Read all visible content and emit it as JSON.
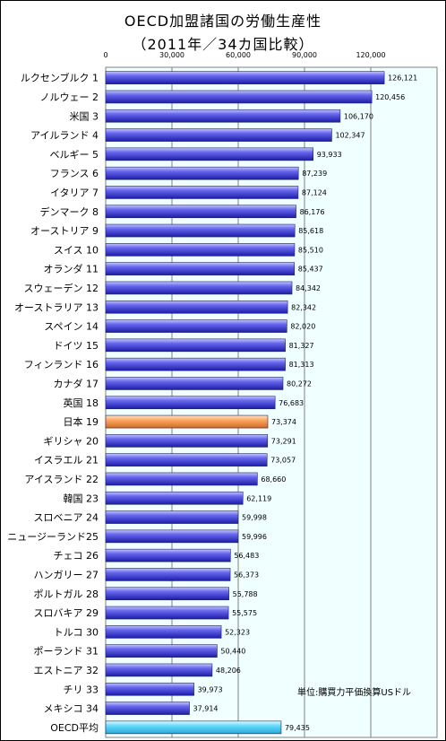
{
  "chart_data": {
    "type": "bar",
    "orientation": "horizontal",
    "title": "OECD加盟諸国の労働生産性",
    "subtitle": "（2011年／34カ国比較）",
    "unit_note": "単位:購買力平価換算USドル",
    "xlim": [
      0,
      150000
    ],
    "x_ticks": [
      "0",
      "30,000",
      "60,000",
      "90,000",
      "120,000"
    ],
    "x_tick_values": [
      0,
      30000,
      60000,
      90000,
      120000
    ],
    "grid": true,
    "colors": {
      "default": "#6666ee",
      "japan": "#ffaa66",
      "oecd_average": "#66ddff",
      "plot_bg": "#f0ffff"
    },
    "categories": [
      "ルクセンブルク 1",
      "ノルウェー 2",
      "米国 3",
      "アイルランド 4",
      "ベルギー 5",
      "フランス 6",
      "イタリア 7",
      "デンマーク 8",
      "オーストリア 9",
      "スイス 10",
      "オランダ 11",
      "スウェーデン 12",
      "オーストラリア 13",
      "スペイン 14",
      "ドイツ 15",
      "フィンランド 16",
      "カナダ 17",
      "英国 18",
      "日本 19",
      "ギリシャ 20",
      "イスラエル 21",
      "アイスランド 22",
      "韓国 23",
      "スロベニア 24",
      "ニュージーランド25",
      "チェコ 26",
      "ハンガリー 27",
      "ポルトガル 28",
      "スロバキア 29",
      "トルコ 30",
      "ポーランド 31",
      "エストニア 32",
      "チリ 33",
      "メキシコ 34",
      "OECD平均"
    ],
    "values": [
      126121,
      120456,
      106170,
      102347,
      93933,
      87239,
      87124,
      86176,
      85618,
      85510,
      85437,
      84342,
      82342,
      82020,
      81327,
      81313,
      80272,
      76683,
      73374,
      73291,
      73057,
      68660,
      62119,
      59998,
      59996,
      56483,
      56373,
      55788,
      55575,
      52323,
      50440,
      48206,
      39973,
      37914,
      79435
    ],
    "value_labels": [
      "126,121",
      "120,456",
      "106,170",
      "102,347",
      "93,933",
      "87,239",
      "87,124",
      "86,176",
      "85,618",
      "85,510",
      "85,437",
      "84,342",
      "82,342",
      "82,020",
      "81,327",
      "81,313",
      "80,272",
      "76,683",
      "73,374",
      "73,291",
      "73,057",
      "68,660",
      "62,119",
      "59,998",
      "59,996",
      "56,483",
      "56,373",
      "55,788",
      "55,575",
      "52,323",
      "50,440",
      "48,206",
      "39,973",
      "37,914",
      "79,435"
    ],
    "highlight": {
      "日本 19": "japan",
      "OECD平均": "oecd_average"
    }
  }
}
